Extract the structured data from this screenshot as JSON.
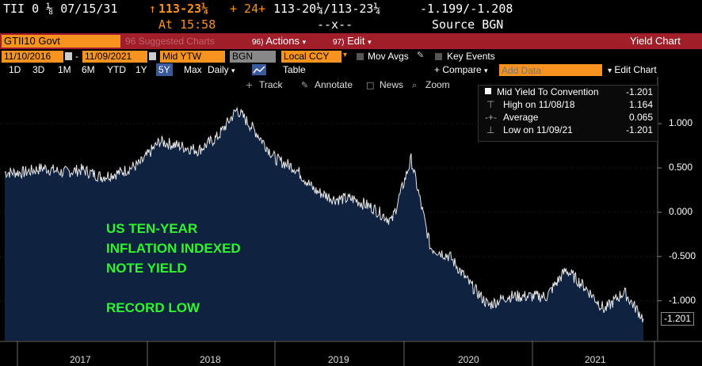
{
  "quote": {
    "ticker": "TII 0 ⅛ 07/15/31",
    "arrow": "↑",
    "price": "113-23¼",
    "change": "+ 24+",
    "bid_ask": "113-20¼/113-23¼",
    "yields": "-1.199/-1.208",
    "time": "At 15:58",
    "size": "--x--",
    "source": "Source BGN"
  },
  "toolbar1": {
    "security": "GTII10 Govt",
    "suggested": "Suggested Charts",
    "suggested_num": "96",
    "actions_num": "96)",
    "actions": "Actions",
    "edit_num": "97)",
    "edit": "Edit",
    "title": "Yield Chart"
  },
  "toolbar2": {
    "start_date": "11/10/2016",
    "end_date": "11/09/2021",
    "field": "Mid YTW",
    "source": "BGN",
    "currency": "Local CCY",
    "mov_avgs": "Mov Avgs",
    "key_events": "Key Events"
  },
  "toolbar3": {
    "periods": [
      "1D",
      "3D",
      "1M",
      "6M",
      "YTD",
      "1Y",
      "5Y",
      "Max"
    ],
    "active_period": "5Y",
    "frequency": "Daily",
    "table": "Table",
    "compare": "+ Compare",
    "add_data_placeholder": "Add Data",
    "edit_chart": "Edit Chart"
  },
  "chart_tools": [
    "Track",
    "Annotate",
    "News",
    "Zoom"
  ],
  "legend": {
    "series": "Mid Yield To Convention",
    "series_value": "-1.201",
    "high_label": "High on 11/08/18",
    "high_value": "1.164",
    "avg_label": "Average",
    "avg_value": "0.065",
    "low_label": "Low on 11/09/21",
    "low_value": "-1.201"
  },
  "annotation": {
    "line1": "US TEN-YEAR",
    "line2": "INFLATION INDEXED",
    "line3": "NOTE YIELD",
    "line4": "RECORD LOW"
  },
  "colors": {
    "accent_orange": "#f7931e",
    "toolbar_red": "#a01f2b",
    "fill_navy": "#0f2240",
    "annotation_green": "#2ef52e"
  },
  "chart_data": {
    "type": "area",
    "x": [
      "2016-11",
      "2017-01",
      "2017-03",
      "2017-05",
      "2017-07",
      "2017-09",
      "2017-11",
      "2018-01",
      "2018-03",
      "2018-05",
      "2018-07",
      "2018-09",
      "2018-11",
      "2019-01",
      "2019-03",
      "2019-05",
      "2019-07",
      "2019-09",
      "2019-11",
      "2020-01",
      "2020-02",
      "2020-03",
      "2020-03b",
      "2020-04",
      "2020-06",
      "2020-08",
      "2020-10",
      "2020-12",
      "2021-02",
      "2021-03",
      "2021-05",
      "2021-07",
      "2021-09",
      "2021-11"
    ],
    "y": [
      0.45,
      0.45,
      0.5,
      0.45,
      0.48,
      0.4,
      0.45,
      0.55,
      0.8,
      0.75,
      0.7,
      0.85,
      1.16,
      0.9,
      0.6,
      0.5,
      0.25,
      0.15,
      0.15,
      0.05,
      -0.1,
      0.6,
      -0.4,
      -0.5,
      -0.8,
      -1.05,
      -0.95,
      -0.95,
      -0.95,
      -0.65,
      -0.85,
      -1.1,
      -0.9,
      -1.201
    ],
    "x_ticks": [
      "2017",
      "2018",
      "2019",
      "2020",
      "2021"
    ],
    "y_ticks": [
      "1.000",
      "0.500",
      "0.000",
      "-0.500",
      "-1.000"
    ],
    "ylim": [
      -1.45,
      1.35
    ],
    "last_value": "-1.201"
  }
}
